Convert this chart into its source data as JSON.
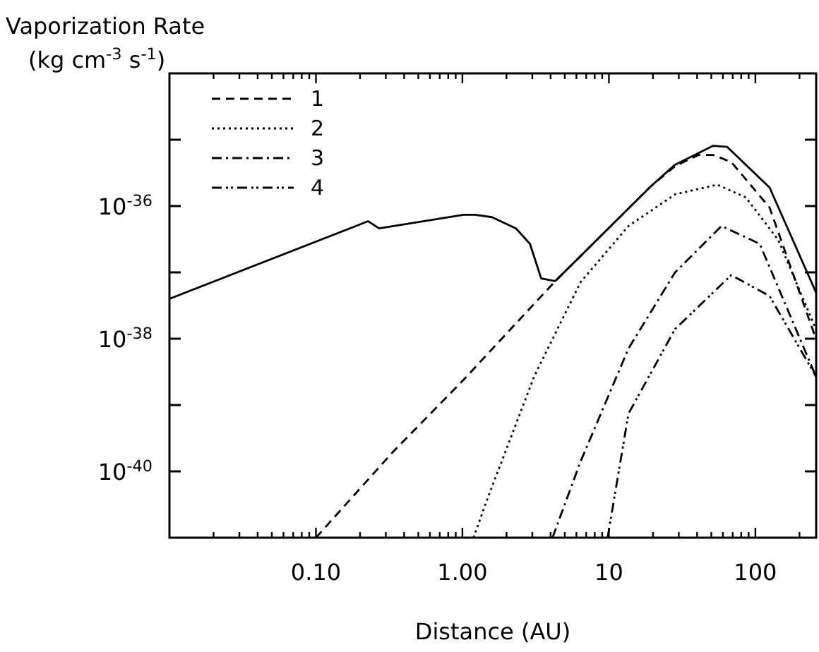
{
  "chart_data": {
    "type": "line",
    "xlabel": "Distance (AU)",
    "ylabel": "Vaporization Rate (kg cm$^{-3}$ s$^{-1}$)",
    "log": "xy",
    "xlim": [
      0.01,
      260
    ],
    "ylim": [
      1e-41,
      1e-34
    ],
    "xticks": [
      {
        "value": 0.02,
        "label": null
      },
      {
        "value": 0.03,
        "label": null
      },
      {
        "value": 0.04,
        "label": null
      },
      {
        "value": 0.05,
        "label": null
      },
      {
        "value": 0.06,
        "label": null
      },
      {
        "value": 0.07,
        "label": null
      },
      {
        "value": 0.08,
        "label": null
      },
      {
        "value": 0.09,
        "label": null
      },
      {
        "value": 0.1,
        "label": "0.10"
      },
      {
        "value": 0.2,
        "label": null
      },
      {
        "value": 0.3,
        "label": null
      },
      {
        "value": 0.4,
        "label": null
      },
      {
        "value": 0.5,
        "label": null
      },
      {
        "value": 0.6,
        "label": null
      },
      {
        "value": 0.7,
        "label": null
      },
      {
        "value": 0.8,
        "label": null
      },
      {
        "value": 0.9,
        "label": null
      },
      {
        "value": 1,
        "label": "1.00"
      },
      {
        "value": 2,
        "label": null
      },
      {
        "value": 3,
        "label": null
      },
      {
        "value": 4,
        "label": null
      },
      {
        "value": 5,
        "label": null
      },
      {
        "value": 6,
        "label": null
      },
      {
        "value": 7,
        "label": null
      },
      {
        "value": 8,
        "label": null
      },
      {
        "value": 9,
        "label": null
      },
      {
        "value": 10,
        "label": "10"
      },
      {
        "value": 20,
        "label": null
      },
      {
        "value": 30,
        "label": null
      },
      {
        "value": 40,
        "label": null
      },
      {
        "value": 50,
        "label": null
      },
      {
        "value": 60,
        "label": null
      },
      {
        "value": 70,
        "label": null
      },
      {
        "value": 80,
        "label": null
      },
      {
        "value": 90,
        "label": null
      },
      {
        "value": 100,
        "label": "100"
      },
      {
        "value": 200,
        "label": null
      }
    ],
    "yticks": [
      {
        "value": 1e-40,
        "label": "10$^{-40}$"
      },
      {
        "value": 1e-39,
        "label": null
      },
      {
        "value": 1e-38,
        "label": "10$^{-38}$"
      },
      {
        "value": 1e-37,
        "label": null
      },
      {
        "value": 1e-36,
        "label": "10$^{-36}$"
      },
      {
        "value": 1e-35,
        "label": null
      }
    ],
    "legend": "top left",
    "grid": false,
    "series": [
      {
        "color": "#000000",
        "line_style": "solid",
        "x": [
          0.01,
          0.227,
          0.27,
          0.338,
          1.02,
          1.22,
          1.59,
          2.32,
          2.89,
          3.45,
          4.31,
          19.4,
          28.3,
          51.5,
          64.2,
          125,
          259
        ],
        "values": [
          4e-38,
          5.9e-37,
          4.6e-37,
          5e-37,
          7.4e-37,
          7.4e-37,
          6.8e-37,
          4.6e-37,
          2.7e-37,
          8.1e-38,
          7.4e-38,
          2e-36,
          4.2e-36,
          8.1e-36,
          7.8e-36,
          1.9e-36,
          5e-38
        ]
      },
      {
        "name": "1",
        "color": "#000000",
        "line_style": "dashed",
        "x": [
          0.1,
          0.338,
          1,
          4.31,
          19.4,
          28.3,
          41,
          51.5,
          68.5,
          125,
          259
        ],
        "values": [
          1e-41,
          2e-40,
          2.3e-39,
          7.4e-38,
          2e-36,
          4e-36,
          5.9e-36,
          5.9e-36,
          4.6e-36,
          9.5e-37,
          1e-38
        ]
      },
      {
        "name": "2",
        "color": "#000000",
        "line_style": "dotted",
        "x": [
          1.19,
          1.49,
          3.09,
          6.4,
          13.6,
          28.3,
          55,
          86,
          143,
          259
        ],
        "values": [
          1e-41,
          4e-41,
          2.7e-39,
          7.1e-38,
          5e-37,
          1.5e-36,
          2.1e-36,
          1.35e-36,
          3.1e-37,
          1.4e-38
        ]
      },
      {
        "name": "3",
        "color": "#000000",
        "line_style": "dashdot",
        "x": [
          4.12,
          6.4,
          13.6,
          28.3,
          58.7,
          107,
          259
        ],
        "values": [
          1e-41,
          1.4e-40,
          7.1e-39,
          1e-37,
          5e-37,
          2.7e-37,
          2.7e-39
        ]
      },
      {
        "name": "4",
        "color": "#000000",
        "line_style": "dashdotdot",
        "x": [
          9.8,
          13.6,
          28.3,
          68.5,
          125,
          259
        ],
        "values": [
          1e-41,
          7.4e-40,
          1.4e-38,
          9.1e-38,
          4.4e-38,
          2.7e-39
        ]
      }
    ]
  }
}
